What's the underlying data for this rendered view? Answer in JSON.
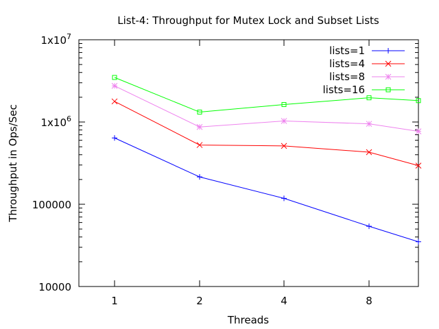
{
  "chart_data": {
    "type": "line",
    "title": "List-4: Throughput for Mutex Lock and Subset Lists",
    "xlabel": "Threads",
    "ylabel": "Throughput in Ops/Sec",
    "y_scale": "log",
    "ylim": [
      10000,
      10000000
    ],
    "x": [
      1,
      2,
      4,
      8,
      12
    ],
    "x_tick_labels": [
      "1",
      "2",
      "4",
      "8"
    ],
    "y_ticks": [
      {
        "value": 10000,
        "label": "10000"
      },
      {
        "value": 100000,
        "label": "100000"
      },
      {
        "value": 1000000,
        "base": "1x10",
        "exp": "6"
      },
      {
        "value": 10000000,
        "base": "1x10",
        "exp": "7"
      }
    ],
    "grid": false,
    "legend_position": "top-right",
    "series": [
      {
        "name": "lists=1",
        "color": "#0000ff",
        "marker": "plus",
        "values": [
          640000,
          215000,
          118000,
          54000,
          35000
        ]
      },
      {
        "name": "lists=4",
        "color": "#ff0000",
        "marker": "x",
        "values": [
          1780000,
          525000,
          512000,
          430000,
          295000
        ]
      },
      {
        "name": "lists=8",
        "color": "#ee82ee",
        "marker": "star",
        "values": [
          2750000,
          870000,
          1030000,
          950000,
          770000
        ]
      },
      {
        "name": "lists=16",
        "color": "#00ff00",
        "marker": "square",
        "values": [
          3480000,
          1320000,
          1630000,
          1970000,
          1820000
        ]
      }
    ]
  }
}
